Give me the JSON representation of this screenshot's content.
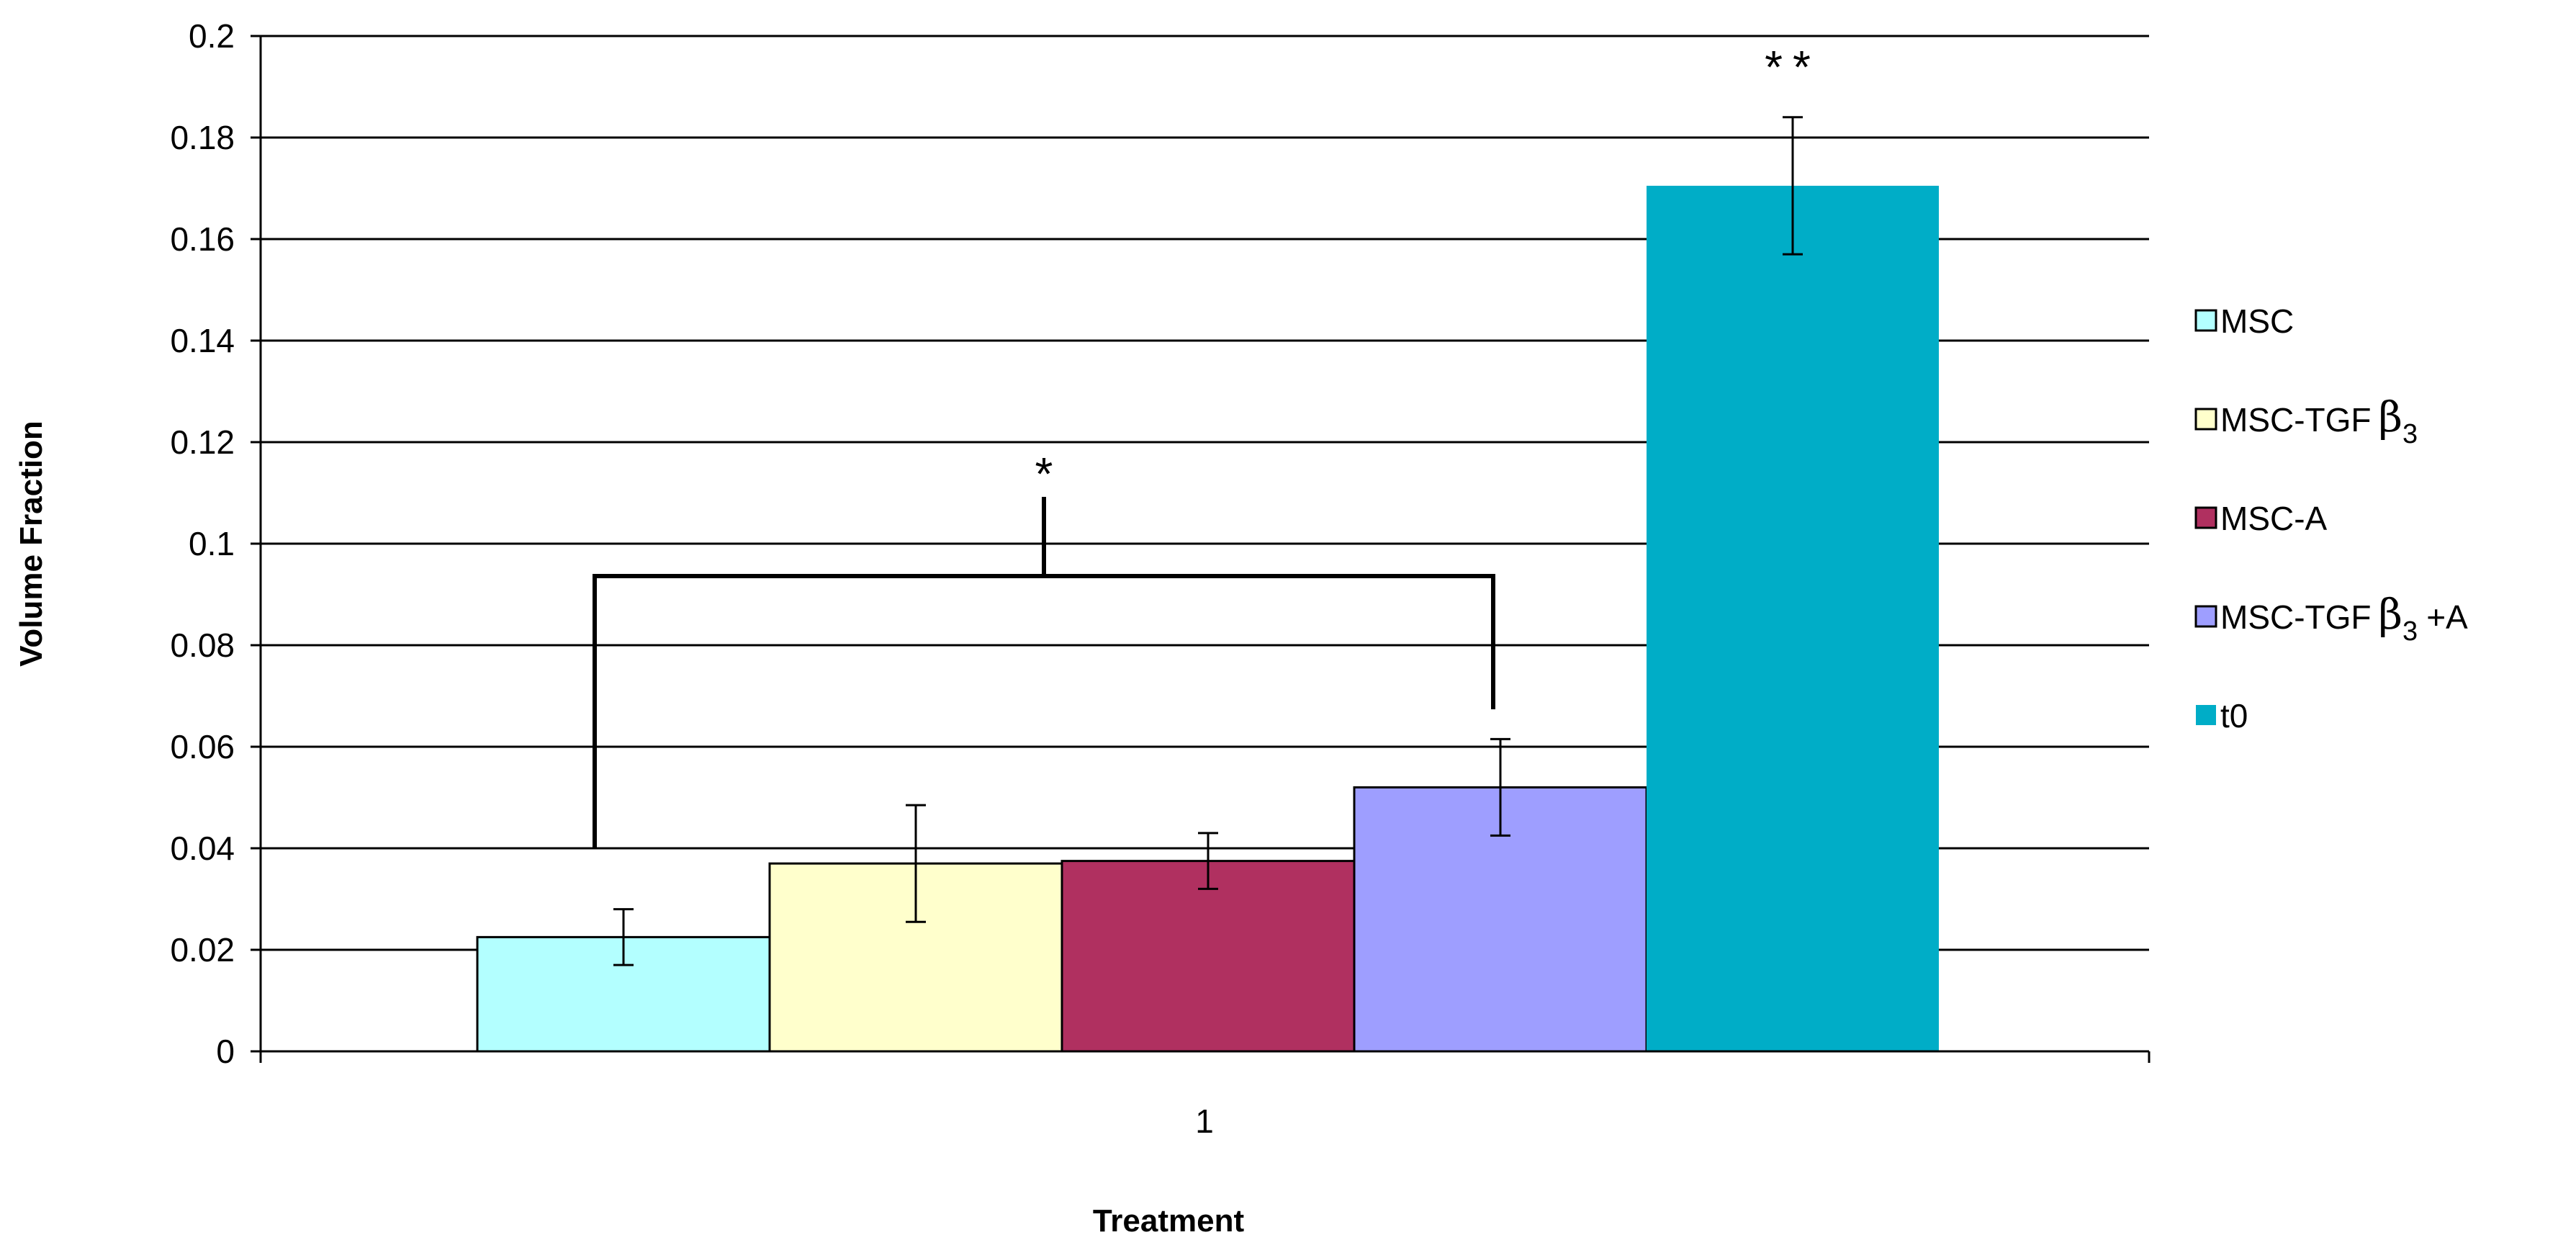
{
  "chart_data": {
    "type": "bar",
    "categories": [
      "1"
    ],
    "series": [
      {
        "name": "MSC",
        "value": 0.0225,
        "error": 0.0055,
        "color": "#b3ffff"
      },
      {
        "name": "MSC-TGFβ3",
        "value": 0.037,
        "error": 0.0115,
        "color": "#ffffcc"
      },
      {
        "name": "MSC-A",
        "value": 0.0375,
        "error": 0.0055,
        "color": "#b03060"
      },
      {
        "name": "MSC-TGFβ3+A",
        "value": 0.052,
        "error": 0.0095,
        "color": "#9e9eff"
      },
      {
        "name": "t0",
        "value": 0.1705,
        "error": 0.0135,
        "color": "#00adc7"
      }
    ],
    "legend_labels": [
      {
        "main": "MSC",
        "beta": "",
        "sub": "",
        "suffix": ""
      },
      {
        "main": "MSC-TGF",
        "beta": "β",
        "sub": "3",
        "suffix": ""
      },
      {
        "main": "MSC-A",
        "beta": "",
        "sub": "",
        "suffix": ""
      },
      {
        "main": "MSC-TGF",
        "beta": "β",
        "sub": "3",
        "suffix": "+A"
      },
      {
        "main": "t0",
        "beta": "",
        "sub": "",
        "suffix": ""
      }
    ],
    "xlabel": "Treatment",
    "ylabel": "Volume Fraction",
    "ylim": [
      0,
      0.2
    ],
    "yticks": [
      "0",
      "0.02",
      "0.04",
      "0.06",
      "0.08",
      "0.1",
      "0.12",
      "0.14",
      "0.16",
      "0.18",
      "0.2"
    ],
    "grid": true,
    "legend_position": "right",
    "annotations": {
      "bracket_marker": "*",
      "t0_marker": "**"
    }
  }
}
